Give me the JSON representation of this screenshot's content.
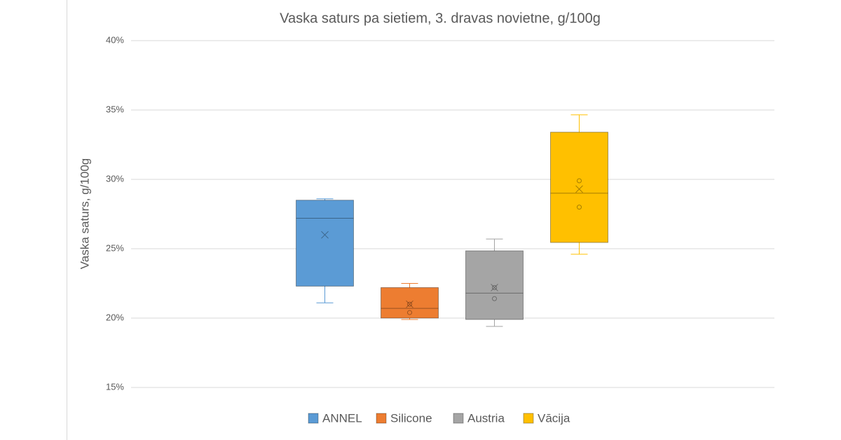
{
  "chart_data": {
    "type": "box",
    "title": "Vaska saturs pa sietiem, 3. dravas novietne, g/100g",
    "y_label": "Vaska saturs, g/100g",
    "ylim": [
      15,
      40
    ],
    "yticks": [
      {
        "value": 15,
        "label": "15%"
      },
      {
        "value": 20,
        "label": "20%"
      },
      {
        "value": 25,
        "label": "25%"
      },
      {
        "value": 30,
        "label": "30%"
      },
      {
        "value": 35,
        "label": "35%"
      },
      {
        "value": 40,
        "label": "40%"
      }
    ],
    "grid": true,
    "legend": "bottom",
    "series": [
      {
        "name": "ANNEL",
        "color": "#5b9bd5",
        "min": 21.1,
        "q1": 22.3,
        "median": 27.2,
        "q3": 28.5,
        "max": 28.6,
        "mean": 26.0,
        "points": []
      },
      {
        "name": "Silicone",
        "color": "#ed7d31",
        "min": 19.9,
        "q1": 20.0,
        "median": 20.7,
        "q3": 22.2,
        "max": 22.5,
        "mean": 21.0,
        "points": [
          20.4,
          21.0
        ]
      },
      {
        "name": "Austria",
        "color": "#a5a5a5",
        "min": 19.4,
        "q1": 19.9,
        "median": 21.8,
        "q3": 24.85,
        "max": 25.7,
        "mean": 22.2,
        "points": [
          21.4,
          22.2
        ]
      },
      {
        "name": "Vācija",
        "color": "#ffc000",
        "min": 24.6,
        "q1": 25.45,
        "median": 29.0,
        "q3": 33.4,
        "max": 34.65,
        "mean": 29.3,
        "points": [
          28.0,
          29.9
        ]
      }
    ]
  }
}
